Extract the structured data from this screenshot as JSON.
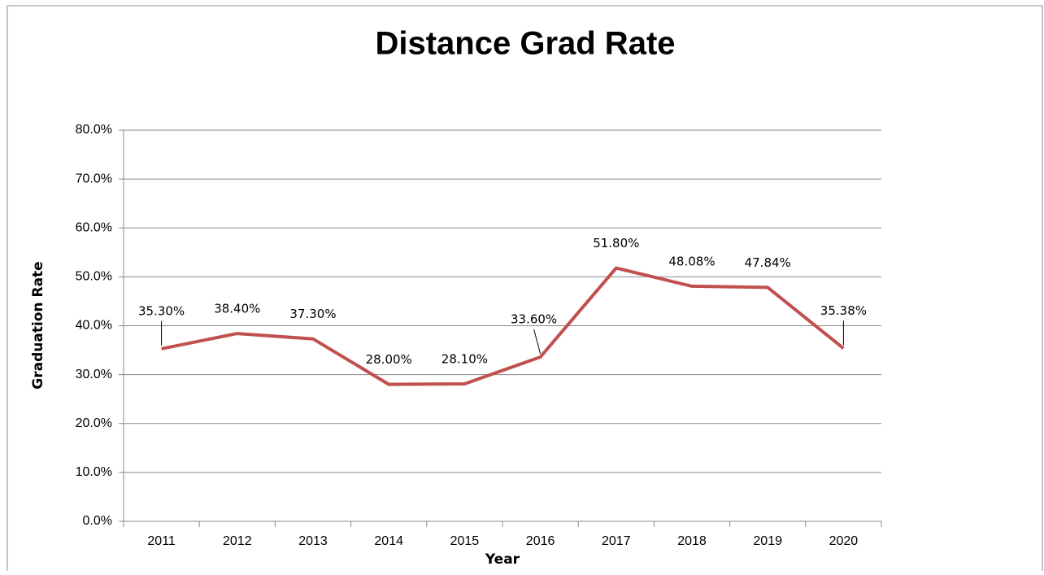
{
  "chart_data": {
    "type": "line",
    "title": "Distance Grad Rate",
    "x_label": "Year",
    "y_label": "Graduation Rate",
    "categories": [
      "2011",
      "2012",
      "2013",
      "2014",
      "2015",
      "2016",
      "2017",
      "2018",
      "2019",
      "2020"
    ],
    "series": [
      {
        "name": "Distance Grad Rate",
        "color": "#c0504d",
        "values": [
          35.3,
          38.4,
          37.3,
          28.0,
          28.1,
          33.6,
          51.8,
          48.08,
          47.84,
          35.38
        ],
        "value_labels": [
          "35.30%",
          "38.40%",
          "37.30%",
          "28.00%",
          "28.10%",
          "33.60%",
          "51.80%",
          "48.08%",
          "47.84%",
          "35.38%"
        ]
      }
    ],
    "ylim": [
      0,
      80
    ],
    "yticks": [
      {
        "value": 0,
        "label": "0.0%"
      },
      {
        "value": 10,
        "label": "10.0%"
      },
      {
        "value": 20,
        "label": "20.0%"
      },
      {
        "value": 30,
        "label": "30.0%"
      },
      {
        "value": 40,
        "label": "40.0%"
      },
      {
        "value": 50,
        "label": "50.0%"
      },
      {
        "value": 60,
        "label": "60.0%"
      },
      {
        "value": 70,
        "label": "70.0%"
      },
      {
        "value": 80,
        "label": "80.0%"
      }
    ],
    "grid": true
  }
}
